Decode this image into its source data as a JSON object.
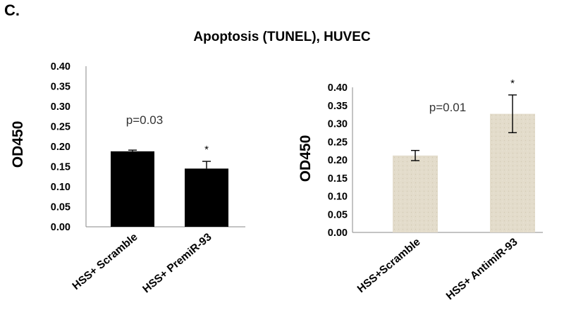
{
  "panel_label": "C.",
  "title": "Apoptosis (TUNEL), HUVEC",
  "chart_data": [
    {
      "type": "bar",
      "categories": [
        "HSS+ Scramble",
        "HSS+ PremiR-93"
      ],
      "values": [
        0.188,
        0.145
      ],
      "errors": [
        0.003,
        0.018
      ],
      "ylabel": "OD450",
      "ylim": [
        0,
        0.4
      ],
      "yticks": [
        "0.00",
        "0.05",
        "0.10",
        "0.15",
        "0.20",
        "0.25",
        "0.30",
        "0.35",
        "0.40"
      ],
      "annotation": "p=0.03",
      "significance": [
        "",
        "*"
      ],
      "bar_color": "#000000",
      "grid": false
    },
    {
      "type": "bar",
      "categories": [
        "HSS+Scramble",
        "HSS+ AntimiR-93"
      ],
      "values": [
        0.212,
        0.327
      ],
      "errors": [
        0.014,
        0.052
      ],
      "ylabel": "OD450",
      "ylim": [
        0,
        0.4
      ],
      "yticks": [
        "0.00",
        "0.05",
        "0.10",
        "0.15",
        "0.20",
        "0.25",
        "0.30",
        "0.35",
        "0.40"
      ],
      "annotation": "p=0.01",
      "significance": [
        "",
        "*"
      ],
      "bar_color": "#e3dccb",
      "grid": false
    }
  ]
}
